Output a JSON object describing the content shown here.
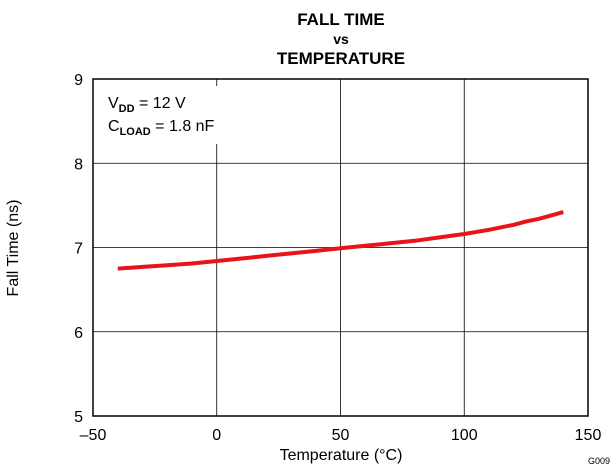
{
  "chart_data": {
    "type": "line",
    "title_lines": [
      "FALL TIME",
      "vs",
      "TEMPERATURE"
    ],
    "xlabel": "Temperature (°C)",
    "ylabel": "Fall Time (ns)",
    "xlim": [
      -50,
      150
    ],
    "ylim": [
      5,
      9
    ],
    "xticks": [
      -50,
      0,
      50,
      100,
      150
    ],
    "xtick_labels": [
      "–50",
      "0",
      "50",
      "100",
      "150"
    ],
    "yticks": [
      5,
      6,
      7,
      8,
      9
    ],
    "ytick_labels": [
      "5",
      "6",
      "7",
      "8",
      "9"
    ],
    "grid": true,
    "annotations": [
      {
        "main": "V",
        "sub": "DD",
        "rest": " = 12 V"
      },
      {
        "main": "C",
        "sub": "LOAD",
        "rest": " = 1.8 nF"
      }
    ],
    "figure_code": "G009",
    "series": [
      {
        "color": "#e8141c",
        "x": [
          -40,
          -30,
          -20,
          -10,
          0,
          10,
          20,
          30,
          40,
          50,
          60,
          70,
          80,
          90,
          100,
          110,
          120,
          125,
          130,
          140
        ],
        "y": [
          6.75,
          6.77,
          6.79,
          6.81,
          6.84,
          6.87,
          6.9,
          6.93,
          6.96,
          6.99,
          7.02,
          7.05,
          7.08,
          7.12,
          7.16,
          7.21,
          7.27,
          7.31,
          7.34,
          7.42
        ]
      }
    ]
  }
}
